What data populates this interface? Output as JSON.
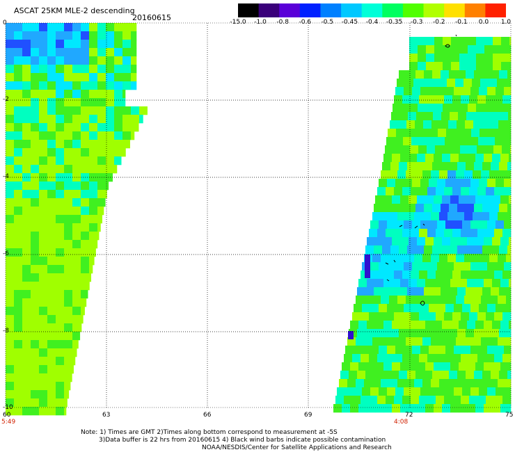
{
  "title": "ASCAT 25KM MLE-2 descending",
  "date": "20160615",
  "colorbar": {
    "labels": [
      "-15.0",
      "-1.0",
      "-0.8",
      "-0.6",
      "-0.5",
      "-0.45",
      "-0.4",
      "-0.35",
      "-0.3",
      "-0.2",
      "-0.1",
      "0.0",
      "1.0"
    ],
    "colors": [
      "#000000",
      "#3a007a",
      "#5a00d8",
      "#0020ff",
      "#0080ff",
      "#00c8ff",
      "#00ffd8",
      "#00ff60",
      "#50ff00",
      "#b0ff00",
      "#ffe000",
      "#ff8000",
      "#ff2000"
    ]
  },
  "axes": {
    "x_ticks": [
      "60",
      "63",
      "66",
      "69",
      "72",
      "75"
    ],
    "y_ticks": [
      "0",
      "-2",
      "-4",
      "-6",
      "-8",
      "-10"
    ],
    "time_left": "5:49",
    "time_right": "4:08"
  },
  "notes": {
    "line1": "Note: 1) Times are GMT 2)Times along bottom correspond to measurement at -5S",
    "line2": "3)Data buffer is 22 hrs from 20160615 4) Black wind barbs indicate possible contamination",
    "line3": "NOAA/NESDIS/Center for Satellite Applications and Research"
  },
  "palette": {
    "lime": "#a0ff00",
    "green": "#40f020",
    "aqua": "#00ffc0",
    "cyan": "#00e8ff",
    "sky": "#20a8ff",
    "blue": "#2050ff",
    "violet": "#3010d0"
  }
}
